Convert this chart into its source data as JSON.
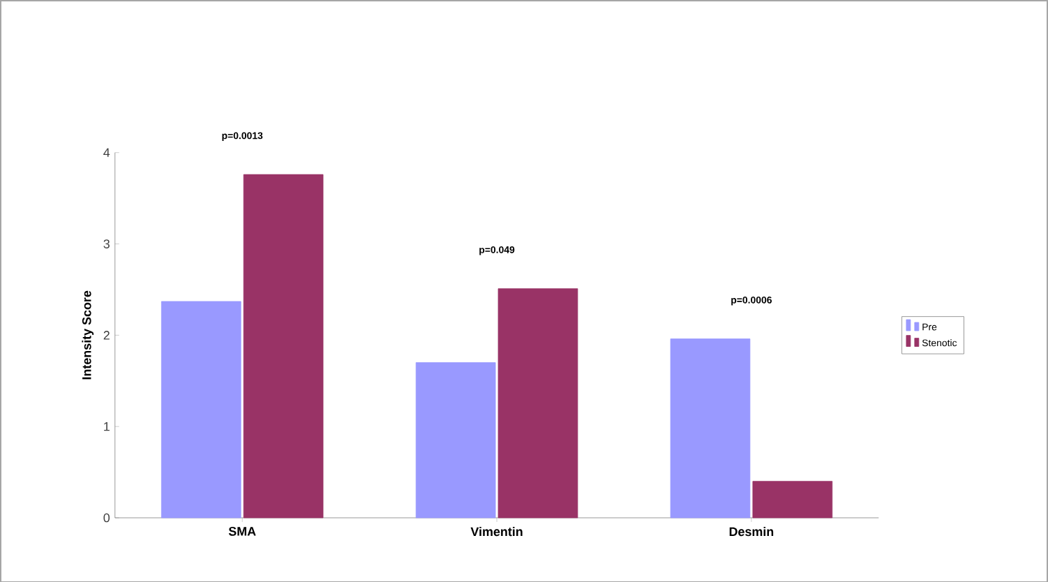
{
  "chart_data": {
    "type": "bar",
    "categories": [
      "SMA",
      "Vimentin",
      "Desmin"
    ],
    "ylabel": "Intensity Score",
    "ylim": [
      0,
      4
    ],
    "yticks": [
      0,
      1,
      2,
      3,
      4
    ],
    "legend": "right",
    "grid": false,
    "series": [
      {
        "name": "Pre",
        "color": "#9999ff",
        "values": [
          2.37,
          1.7,
          1.96
        ]
      },
      {
        "name": "Stenotic",
        "color": "#993366",
        "values": [
          3.76,
          2.51,
          0.4
        ]
      }
    ],
    "annotations": [
      "p=0.0013",
      "p=0.049",
      "p=0.0006"
    ]
  }
}
